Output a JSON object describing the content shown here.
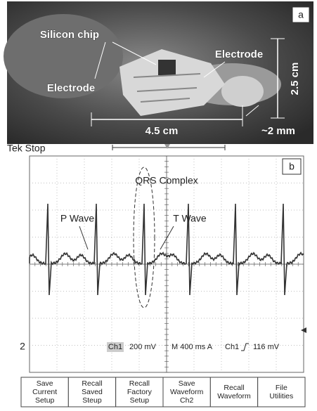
{
  "panel_a": {
    "label": "a",
    "chip": "Silicon chip",
    "electrode_left": "Electrode",
    "electrode_right": "Electrode",
    "height": "2.5 cm",
    "width": "4.5 cm",
    "thickness": "~2 mm"
  },
  "panel_b": {
    "label": "b",
    "status": "Tek Stop",
    "qrs": "QRS Complex",
    "p_wave": "P Wave",
    "t_wave": "T Wave",
    "channel_marker": "2",
    "readout": {
      "ch": "Ch1",
      "scale": "200 mV",
      "time": "M 400 ms A",
      "trig_ch": "Ch1",
      "trig_level": "116 mV"
    },
    "menu": [
      [
        "Save",
        "Current",
        "Setup"
      ],
      [
        "Recall",
        "Saved",
        "Steup"
      ],
      [
        "Recall",
        "Factory",
        "Setup"
      ],
      [
        "Save",
        "Waveform",
        "Ch2"
      ],
      [
        "Recall",
        "Waveform"
      ],
      [
        "File",
        "Utilities"
      ]
    ]
  }
}
